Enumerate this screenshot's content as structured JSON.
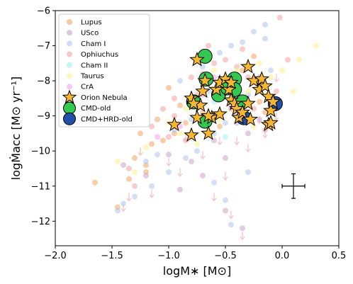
{
  "chart_data": {
    "type": "scatter",
    "xlabel": "logM∗ [M⊙]",
    "ylabel": "logṀacc [M⊙ yr⁻¹]",
    "xlim": [
      -2.0,
      0.5
    ],
    "ylim": [
      -12.7,
      -6.0
    ],
    "xticks": [
      "−2.0",
      "−1.5",
      "−1.0",
      "−0.5",
      "0.0",
      "0.5"
    ],
    "xtick_values": [
      -2.0,
      -1.5,
      -1.0,
      -0.5,
      0.0,
      0.5
    ],
    "yticks": [
      "−12",
      "−11",
      "−10",
      "−9",
      "−8",
      "−7",
      "−6"
    ],
    "ytick_values": [
      -12,
      -11,
      -10,
      -9,
      -8,
      -7,
      -6
    ],
    "grid": false,
    "legend_position": "top-left",
    "error_bar": {
      "x": 0.1,
      "y": -11.0,
      "xerr": 0.1,
      "yerr": 0.35
    },
    "series": [
      {
        "name": "Lupus",
        "marker": "circle",
        "color": "#f4a460",
        "points": [
          [
            -1.65,
            -10.9
          ],
          [
            -1.35,
            -10.8
          ],
          [
            -1.2,
            -10.6
          ],
          [
            -1.15,
            -9.8
          ],
          [
            -1.05,
            -9.7
          ],
          [
            -0.95,
            -9.5
          ],
          [
            -0.85,
            -9.2
          ],
          [
            -0.8,
            -8.6
          ],
          [
            -0.7,
            -8.9
          ],
          [
            -0.6,
            -8.4
          ],
          [
            -0.55,
            -9.3
          ],
          [
            -0.45,
            -8.8
          ],
          [
            -0.4,
            -8.2
          ],
          [
            -0.3,
            -9.0
          ],
          [
            -0.2,
            -8.6
          ],
          [
            -1.0,
            -8.2
          ],
          [
            -1.1,
            -9.1
          ],
          [
            -1.25,
            -9.5
          ],
          [
            -0.9,
            -8.7
          ],
          [
            -0.35,
            -7.7
          ],
          [
            -0.25,
            -7.3
          ],
          [
            -1.3,
            -10.2
          ],
          [
            -1.2,
            -10.4
          ],
          [
            -1.45,
            -11.6
          ],
          [
            -0.65,
            -8.0
          ],
          [
            -0.15,
            -8.9
          ]
        ]
      },
      {
        "name": "USco",
        "marker": "circle",
        "color": "#c8a2c8",
        "points": [
          [
            -1.4,
            -10.4
          ],
          [
            -1.2,
            -10.7
          ],
          [
            -1.0,
            -10.1
          ],
          [
            -0.8,
            -10.3
          ],
          [
            -0.6,
            -9.7
          ],
          [
            -0.5,
            -10.2
          ],
          [
            -0.4,
            -9.2
          ],
          [
            -0.3,
            -9.5
          ],
          [
            -0.2,
            -9.1
          ],
          [
            -0.5,
            -11.7
          ],
          [
            -0.35,
            -12.2
          ],
          [
            -0.3,
            -8.6
          ],
          [
            -0.2,
            -7.9
          ],
          [
            -0.7,
            -10.7
          ],
          [
            -0.9,
            -11.1
          ],
          [
            -0.55,
            -9.0
          ]
        ]
      },
      {
        "name": "Cham I",
        "marker": "circle",
        "color": "#b0c4ee",
        "points": [
          [
            -1.45,
            -11.7
          ],
          [
            -1.3,
            -11.3
          ],
          [
            -1.15,
            -11.0
          ],
          [
            -1.0,
            -10.6
          ],
          [
            -0.85,
            -10.2
          ],
          [
            -0.75,
            -10.0
          ],
          [
            -0.6,
            -9.5
          ],
          [
            -0.5,
            -9.2
          ],
          [
            -0.4,
            -8.9
          ],
          [
            -0.3,
            -8.4
          ],
          [
            -0.2,
            -8.1
          ],
          [
            -0.1,
            -7.7
          ],
          [
            -0.55,
            -7.2
          ],
          [
            -0.45,
            -7.0
          ],
          [
            -0.35,
            -6.9
          ],
          [
            -0.25,
            -6.6
          ],
          [
            -0.15,
            -6.4
          ],
          [
            -0.65,
            -8.3
          ],
          [
            -0.8,
            -9.1
          ],
          [
            -0.95,
            -9.4
          ],
          [
            -1.1,
            -10.1
          ],
          [
            -1.2,
            -10.3
          ],
          [
            -0.7,
            -7.6
          ],
          [
            -0.9,
            -8.0
          ],
          [
            -0.5,
            -11.4
          ],
          [
            -0.3,
            -10.6
          ],
          [
            -0.6,
            -10.9
          ],
          [
            -1.4,
            -11.5
          ],
          [
            -0.45,
            -12.1
          ],
          [
            -0.15,
            -6.8
          ]
        ]
      },
      {
        "name": "Ophiuchus",
        "marker": "circle",
        "color": "#f4a0a0",
        "points": [
          [
            -1.35,
            -10.5
          ],
          [
            -1.15,
            -9.3
          ],
          [
            -0.95,
            -8.5
          ],
          [
            -0.8,
            -7.9
          ],
          [
            -0.7,
            -7.8
          ],
          [
            -0.6,
            -7.5
          ],
          [
            -0.5,
            -7.4
          ],
          [
            -0.4,
            -7.6
          ],
          [
            -0.3,
            -7.9
          ],
          [
            -0.2,
            -8.2
          ],
          [
            -0.1,
            -8.7
          ],
          [
            -0.05,
            -8.3
          ],
          [
            -0.45,
            -8.5
          ],
          [
            -0.85,
            -9.7
          ],
          [
            -0.95,
            -9.0
          ],
          [
            -1.05,
            -8.8
          ],
          [
            -0.65,
            -7.0
          ],
          [
            -0.35,
            -7.1
          ],
          [
            -0.25,
            -8.8
          ],
          [
            -0.15,
            -9.4
          ],
          [
            -0.75,
            -8.4
          ],
          [
            -0.55,
            -8.9
          ],
          [
            0.05,
            -7.4
          ],
          [
            -0.02,
            -6.2
          ],
          [
            -1.3,
            -11.0
          ],
          [
            -1.0,
            -9.6
          ]
        ]
      },
      {
        "name": "Cham II",
        "marker": "circle",
        "color": "#a0f0f0",
        "points": [
          [
            -0.6,
            -8.6
          ],
          [
            -0.45,
            -8.2
          ],
          [
            -0.5,
            -9.6
          ],
          [
            -0.35,
            -9.1
          ]
        ]
      },
      {
        "name": "Taurus",
        "marker": "circle",
        "color": "#fff08a",
        "points": [
          [
            -1.45,
            -10.3
          ],
          [
            -1.2,
            -9.9
          ],
          [
            -1.0,
            -9.2
          ],
          [
            -0.85,
            -8.8
          ],
          [
            -0.7,
            -8.1
          ],
          [
            -0.6,
            -7.7
          ],
          [
            -0.5,
            -8.0
          ],
          [
            -0.4,
            -7.7
          ],
          [
            -0.3,
            -8.3
          ],
          [
            -0.2,
            -7.5
          ],
          [
            -0.1,
            -7.9
          ],
          [
            0.0,
            -7.7
          ],
          [
            0.1,
            -8.3
          ],
          [
            0.3,
            -7.0
          ],
          [
            -0.55,
            -9.1
          ],
          [
            -0.25,
            -9.3
          ],
          [
            -1.3,
            -10.6
          ],
          [
            -0.9,
            -9.5
          ],
          [
            -0.75,
            -9.8
          ],
          [
            0.15,
            -7.4
          ]
        ]
      },
      {
        "name": "CrA",
        "marker": "circle",
        "color": "#f4a0f0",
        "points": [
          [
            -0.9,
            -9.3
          ],
          [
            -0.7,
            -8.4
          ],
          [
            -0.45,
            -8.7
          ],
          [
            -0.2,
            -8.0
          ],
          [
            -1.1,
            -9.6
          ],
          [
            -0.6,
            -7.9
          ]
        ]
      },
      {
        "name": "Orion Nebula",
        "marker": "star",
        "color": "#f7b731",
        "points": [
          [
            -0.95,
            -9.25
          ],
          [
            -0.8,
            -9.55
          ],
          [
            -0.75,
            -9.05
          ],
          [
            -0.8,
            -8.5
          ],
          [
            -0.72,
            -8.7
          ],
          [
            -0.65,
            -9.5
          ],
          [
            -0.62,
            -9.05
          ],
          [
            -0.58,
            -8.25
          ],
          [
            -0.55,
            -8.05
          ],
          [
            -0.5,
            -7.95
          ],
          [
            -0.47,
            -8.25
          ],
          [
            -0.45,
            -8.55
          ],
          [
            -0.42,
            -8.65
          ],
          [
            -0.4,
            -8.8
          ],
          [
            -0.38,
            -9.05
          ],
          [
            -0.35,
            -8.9
          ],
          [
            -0.3,
            -7.6
          ],
          [
            -0.3,
            -8.65
          ],
          [
            -0.25,
            -8.0
          ],
          [
            -0.2,
            -8.25
          ],
          [
            -0.18,
            -7.95
          ],
          [
            -0.15,
            -8.15
          ],
          [
            -0.12,
            -8.45
          ],
          [
            -0.1,
            -8.85
          ],
          [
            -0.12,
            -9.25
          ],
          [
            -0.1,
            -9.2
          ],
          [
            -0.75,
            -7.4
          ],
          [
            -0.68,
            -8.0
          ],
          [
            -0.7,
            -8.3
          ],
          [
            -0.55,
            -8.95
          ],
          [
            -0.45,
            -8.05
          ],
          [
            -0.28,
            -9.1
          ],
          [
            -0.08,
            -8.6
          ],
          [
            -0.65,
            -9.0
          ],
          [
            -0.78,
            -8.65
          ]
        ]
      },
      {
        "name": "CMD-old",
        "marker": "circle-large",
        "color": "#35c850",
        "points": [
          [
            -0.68,
            -7.3
          ],
          [
            -0.67,
            -7.95
          ],
          [
            -0.78,
            -8.6
          ],
          [
            -0.68,
            -9.15
          ],
          [
            -0.56,
            -8.4
          ],
          [
            -0.48,
            -8.2
          ],
          [
            -0.42,
            -7.95
          ],
          [
            -0.42,
            -8.25
          ],
          [
            -0.35,
            -8.6
          ]
        ]
      },
      {
        "name": "CMD+HRD-old",
        "marker": "circle-large",
        "color": "#1f4fa8",
        "points": [
          [
            -0.34,
            -9.05
          ],
          [
            -0.06,
            -8.65
          ]
        ]
      }
    ],
    "upper_limits": [
      [
        -1.35,
        -11.2
      ],
      [
        -1.15,
        -11.1
      ],
      [
        -1.0,
        -10.2
      ],
      [
        -0.9,
        -10.5
      ],
      [
        -0.55,
        -9.6
      ],
      [
        -0.5,
        -10.6
      ],
      [
        -0.4,
        -9.6
      ],
      [
        -0.3,
        -9.8
      ],
      [
        -0.15,
        -9.4
      ],
      [
        -0.05,
        -8.9
      ],
      [
        -1.25,
        -9.9
      ],
      [
        -0.45,
        -11.7
      ],
      [
        -0.35,
        -12.3
      ],
      [
        -0.2,
        -9.0
      ],
      [
        -0.05,
        -7.8
      ],
      [
        -0.6,
        -11.2
      ],
      [
        -1.4,
        -11.5
      ],
      [
        -0.85,
        -9.5
      ],
      [
        -0.7,
        -10.0
      ]
    ]
  }
}
